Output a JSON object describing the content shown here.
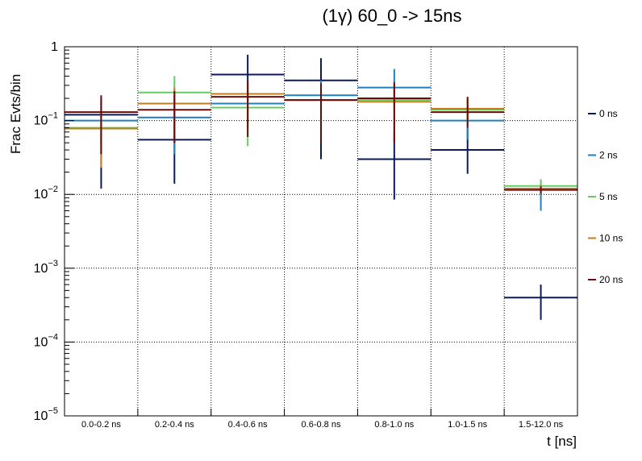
{
  "chart_data": {
    "type": "histogram-errorbar",
    "title": "(1γ) 60_0 -> 15ns",
    "xlabel": "t [ns]",
    "ylabel": "Frac Evts/bin",
    "yscale": "log",
    "ylim": [
      1e-05,
      1
    ],
    "yticks": [
      {
        "base": "10",
        "exp": "−5",
        "value": 1e-05
      },
      {
        "base": "10",
        "exp": "−4",
        "value": 0.0001
      },
      {
        "base": "10",
        "exp": "−3",
        "value": 0.001
      },
      {
        "base": "10",
        "exp": "−2",
        "value": 0.01
      },
      {
        "base": "10",
        "exp": "−1",
        "value": 0.1
      },
      {
        "base": "1",
        "exp": "",
        "value": 1
      }
    ],
    "grid": true,
    "legend_position": "right",
    "categories": [
      "0.0-0.2 ns",
      "0.2-0.4 ns",
      "0.4-0.6 ns",
      "0.6-0.8 ns",
      "0.8-1.0 ns",
      "1.0-1.5 ns",
      "1.5-12.0 ns"
    ],
    "series": [
      {
        "name": "0 ns",
        "color": "#0a1a5c",
        "values": [
          0.12,
          0.055,
          0.42,
          0.35,
          0.03,
          0.04,
          0.0004
        ],
        "err_low": [
          0.012,
          0.014,
          0.19,
          0.03,
          0.0085,
          0.019,
          0.0002
        ],
        "err_high": [
          0.2,
          0.22,
          0.78,
          0.7,
          0.07,
          0.08,
          0.0006
        ]
      },
      {
        "name": "2 ns",
        "color": "#1f7fbf",
        "values": [
          0.1,
          0.11,
          0.17,
          0.22,
          0.28,
          0.1,
          0.012
        ],
        "err_low": [
          0.045,
          0.035,
          0.09,
          0.1,
          0.15,
          0.055,
          0.006
        ],
        "err_high": [
          0.17,
          0.22,
          0.27,
          0.35,
          0.5,
          0.16,
          0.016
        ]
      },
      {
        "name": "5 ns",
        "color": "#66cc66",
        "values": [
          0.08,
          0.24,
          0.15,
          0.19,
          0.19,
          0.14,
          0.013
        ],
        "err_low": [
          0.035,
          0.09,
          0.045,
          0.09,
          0.08,
          0.09,
          0.011
        ],
        "err_high": [
          0.13,
          0.4,
          0.24,
          0.3,
          0.3,
          0.2,
          0.016
        ]
      },
      {
        "name": "10 ns",
        "color": "#c87a1e",
        "values": [
          0.078,
          0.17,
          0.23,
          0.19,
          0.18,
          0.145,
          0.012
        ],
        "err_low": [
          0.023,
          0.06,
          0.08,
          0.06,
          0.05,
          0.1,
          0.0105
        ],
        "err_high": [
          0.13,
          0.28,
          0.33,
          0.3,
          0.3,
          0.2,
          0.0135
        ]
      },
      {
        "name": "20 ns",
        "color": "#6b0a0a",
        "values": [
          0.13,
          0.14,
          0.21,
          0.19,
          0.2,
          0.13,
          0.0115
        ],
        "err_low": [
          0.035,
          0.05,
          0.06,
          0.05,
          0.05,
          0.08,
          0.0102
        ],
        "err_high": [
          0.22,
          0.25,
          0.35,
          0.32,
          0.33,
          0.21,
          0.0128
        ]
      }
    ]
  }
}
